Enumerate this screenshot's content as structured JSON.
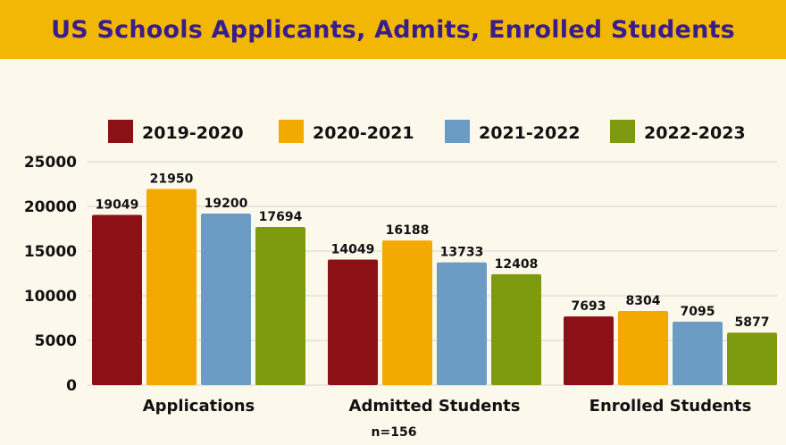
{
  "chart_data": {
    "type": "bar",
    "title": "US Schools Applicants, Admits, Enrolled Students",
    "categories": [
      "Applications",
      "Admitted Students",
      "Enrolled Students"
    ],
    "series": [
      {
        "name": "2019-2020",
        "color": "#8b1116",
        "values": [
          19049,
          14049,
          7693
        ]
      },
      {
        "name": "2020-2021",
        "color": "#f2a900",
        "values": [
          21950,
          16188,
          8304
        ]
      },
      {
        "name": "2021-2022",
        "color": "#6c9cc4",
        "values": [
          19200,
          13733,
          7095
        ]
      },
      {
        "name": "2022-2023",
        "color": "#7e9b10",
        "values": [
          17694,
          12408,
          5877
        ]
      }
    ],
    "yticks": [
      0,
      5000,
      10000,
      15000,
      20000,
      25000
    ],
    "ylim": [
      0,
      25000
    ],
    "grid": true,
    "legend_position": "top",
    "annotation": "n=156"
  }
}
